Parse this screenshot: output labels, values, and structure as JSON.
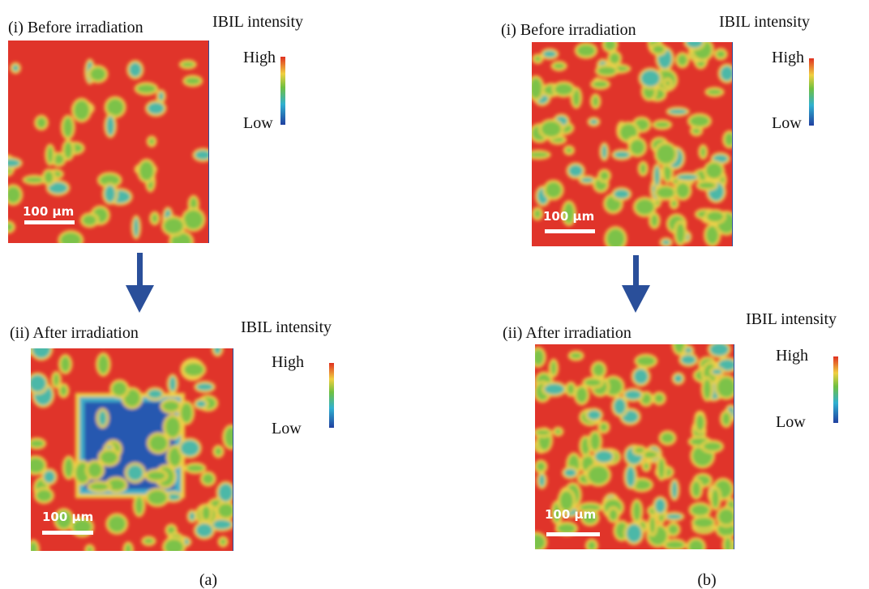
{
  "panels": [
    {
      "label": "(a)",
      "maps": [
        {
          "title": "(i) Before irradiation",
          "scale_bar": "100 µm",
          "legend": {
            "title": "IBIL intensity",
            "high": "High",
            "low": "Low"
          }
        },
        {
          "title": "(ii) After irradiation",
          "scale_bar": "100 µm",
          "legend": {
            "title": "IBIL intensity",
            "high": "High",
            "low": "Low"
          }
        }
      ]
    },
    {
      "label": "(b)",
      "maps": [
        {
          "title": "(i) Before irradiation",
          "scale_bar": "100 µm",
          "legend": {
            "title": "IBIL intensity",
            "high": "High",
            "low": "Low"
          }
        },
        {
          "title": "(ii) After irradiation",
          "scale_bar": "100 µm",
          "legend": {
            "title": "IBIL intensity",
            "high": "High",
            "low": "Low"
          }
        }
      ]
    }
  ]
}
